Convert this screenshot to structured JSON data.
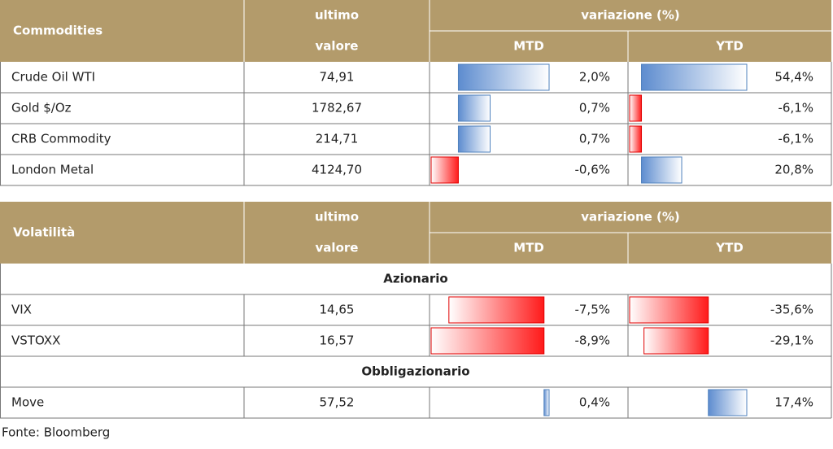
{
  "tables": [
    {
      "title": "Commodities",
      "headers": {
        "last_1": "ultimo",
        "last_2": "valore",
        "change": "variazione (%)",
        "mtd": "MTD",
        "ytd": "YTD"
      },
      "rows": [
        {
          "name": "Crude Oil WTI",
          "last": "74,91",
          "mtd": {
            "value": 2.0,
            "label": "2,0%"
          },
          "ytd": {
            "value": 54.4,
            "label": "54,4%"
          }
        },
        {
          "name": "Gold $/Oz",
          "last": "1782,67",
          "mtd": {
            "value": 0.7,
            "label": "0,7%"
          },
          "ytd": {
            "value": -6.1,
            "label": "-6,1%"
          }
        },
        {
          "name": "CRB Commodity",
          "last": "214,71",
          "mtd": {
            "value": 0.7,
            "label": "0,7%"
          },
          "ytd": {
            "value": -6.1,
            "label": "-6,1%"
          }
        },
        {
          "name": "London Metal",
          "last": "4124,70",
          "mtd": {
            "value": -0.6,
            "label": "-0,6%"
          },
          "ytd": {
            "value": 20.8,
            "label": "20,8%"
          }
        }
      ]
    },
    {
      "title": "Volatilità",
      "headers": {
        "last_1": "ultimo",
        "last_2": "valore",
        "change": "variazione (%)",
        "mtd": "MTD",
        "ytd": "YTD"
      },
      "sections": [
        {
          "title": "Azionario",
          "rows": [
            {
              "name": "VIX",
              "last": "14,65",
              "mtd": {
                "value": -7.5,
                "label": "-7,5%"
              },
              "ytd": {
                "value": -35.6,
                "label": "-35,6%"
              }
            },
            {
              "name": "VSTOXX",
              "last": "16,57",
              "mtd": {
                "value": -8.9,
                "label": "-8,9%"
              },
              "ytd": {
                "value": -29.1,
                "label": "-29,1%"
              }
            }
          ]
        },
        {
          "title": "Obbligazionario",
          "rows": [
            {
              "name": "Move",
              "last": "57,52",
              "mtd": {
                "value": 0.4,
                "label": "0,4%"
              },
              "ytd": {
                "value": 17.4,
                "label": "17,4%"
              }
            }
          ]
        }
      ]
    }
  ],
  "source": "Fonte: Bloomberg"
}
